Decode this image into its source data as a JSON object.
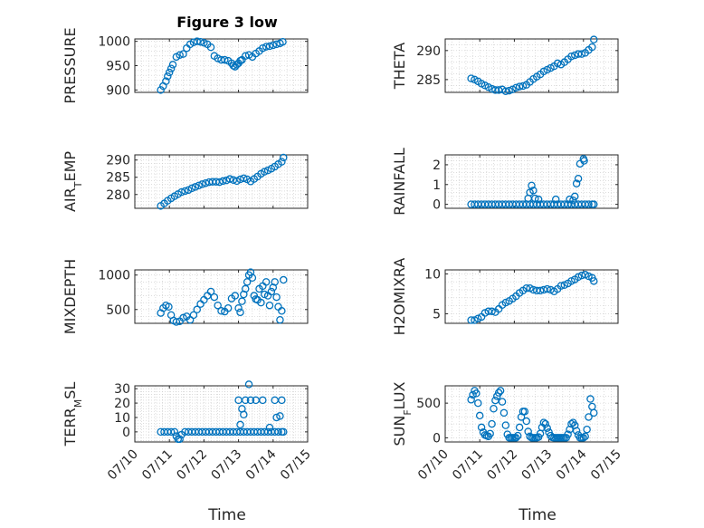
{
  "figure": {
    "title": "Figure 3 low",
    "x_tick_labels": [
      "07/10",
      "07/11",
      "07/12",
      "07/13",
      "07/14",
      "07/15"
    ],
    "x_label": "Time",
    "marker_color": "#0072bd"
  },
  "chart_data": [
    {
      "type": "scatter",
      "ylabel": "PRESSURE",
      "ylabel_sub": "",
      "ylabel_suffix": "",
      "ylim": [
        895,
        1005
      ],
      "yticks": [
        900,
        950,
        1000
      ],
      "xlim": [
        0,
        5
      ],
      "x": [
        0.75,
        0.82,
        0.9,
        0.95,
        1.0,
        1.05,
        1.1,
        1.2,
        1.3,
        1.4,
        1.5,
        1.6,
        1.7,
        1.8,
        1.9,
        2.0,
        2.1,
        2.2,
        2.3,
        2.4,
        2.5,
        2.6,
        2.7,
        2.8,
        2.85,
        2.9,
        2.95,
        3.0,
        3.05,
        3.1,
        3.2,
        3.3,
        3.4,
        3.5,
        3.6,
        3.7,
        3.8,
        3.9,
        4.0,
        4.1,
        4.2,
        4.28
      ],
      "y": [
        900,
        908,
        918,
        928,
        936,
        944,
        952,
        968,
        972,
        974,
        986,
        994,
        998,
        1000,
        999,
        997,
        994,
        988,
        970,
        965,
        962,
        962,
        960,
        955,
        950,
        948,
        952,
        955,
        960,
        962,
        970,
        972,
        968,
        975,
        980,
        986,
        989,
        990,
        992,
        994,
        996,
        999
      ]
    },
    {
      "type": "scatter",
      "ylabel": "THETA",
      "ylabel_sub": "",
      "ylabel_suffix": "",
      "ylim": [
        282.8,
        292
      ],
      "yticks": [
        285,
        290
      ],
      "xlim": [
        0,
        5
      ],
      "x": [
        0.75,
        0.85,
        0.95,
        1.05,
        1.15,
        1.25,
        1.35,
        1.45,
        1.55,
        1.65,
        1.75,
        1.85,
        1.95,
        2.05,
        2.15,
        2.25,
        2.35,
        2.45,
        2.55,
        2.65,
        2.75,
        2.85,
        2.95,
        3.05,
        3.15,
        3.25,
        3.35,
        3.45,
        3.55,
        3.65,
        3.75,
        3.85,
        3.95,
        4.05,
        4.15,
        4.25,
        4.3
      ],
      "y": [
        285.2,
        285,
        284.7,
        284.3,
        284,
        283.7,
        283.4,
        283.2,
        283.2,
        283.3,
        283,
        283.1,
        283.3,
        283.6,
        283.8,
        283.9,
        284.1,
        284.6,
        285.1,
        285.5,
        285.9,
        286.4,
        286.7,
        287,
        287.3,
        287.8,
        287.6,
        288,
        288.5,
        289,
        289.2,
        289.4,
        289.4,
        289.6,
        290.1,
        290.6,
        291.9
      ]
    },
    {
      "type": "scatter",
      "ylabel": "AIR",
      "ylabel_sub": "T",
      "ylabel_suffix": "EMP",
      "ylim": [
        276,
        291.5
      ],
      "yticks": [
        280,
        285,
        290
      ],
      "xlim": [
        0,
        5
      ],
      "x": [
        0.75,
        0.85,
        0.95,
        1.05,
        1.15,
        1.25,
        1.35,
        1.45,
        1.55,
        1.65,
        1.75,
        1.85,
        1.95,
        2.05,
        2.15,
        2.25,
        2.35,
        2.45,
        2.55,
        2.65,
        2.75,
        2.85,
        2.95,
        3.05,
        3.15,
        3.25,
        3.35,
        3.45,
        3.55,
        3.65,
        3.75,
        3.85,
        3.95,
        4.05,
        4.15,
        4.25,
        4.3
      ],
      "y": [
        276.7,
        277.4,
        278.2,
        278.9,
        279.5,
        280.1,
        280.7,
        281,
        281.3,
        281.8,
        282.2,
        282.6,
        283,
        283.3,
        283.6,
        283.7,
        283.7,
        283.6,
        283.9,
        284.1,
        284.5,
        284.2,
        283.9,
        284.4,
        284.7,
        284.4,
        283.8,
        284.5,
        285.2,
        286,
        286.6,
        287,
        287.5,
        288.1,
        288.8,
        289.5,
        290.7
      ]
    },
    {
      "type": "scatter",
      "ylabel": "RAINFALL",
      "ylabel_sub": "",
      "ylabel_suffix": "",
      "ylim": [
        -0.2,
        2.5
      ],
      "yticks": [
        0,
        1,
        2
      ],
      "xlim": [
        0,
        5
      ],
      "x": [
        0.75,
        0.85,
        0.95,
        1.05,
        1.15,
        1.25,
        1.35,
        1.45,
        1.55,
        1.65,
        1.75,
        1.85,
        1.95,
        2.05,
        2.15,
        2.25,
        2.35,
        2.45,
        2.55,
        2.65,
        2.75,
        2.85,
        2.95,
        3.05,
        3.15,
        3.25,
        3.35,
        3.45,
        3.55,
        3.65,
        3.75,
        3.85,
        3.95,
        4.05,
        4.15,
        4.25,
        4.3,
        2.4,
        2.45,
        2.5,
        2.55,
        2.6,
        2.7,
        3.2,
        3.6,
        3.7,
        3.75,
        3.8,
        3.85,
        3.9,
        4.0,
        4.02
      ],
      "y": [
        0,
        0,
        0,
        0,
        0,
        0,
        0,
        0,
        0,
        0,
        0,
        0,
        0,
        0,
        0,
        0,
        0,
        0,
        0,
        0,
        0,
        0,
        0,
        0,
        0,
        0,
        0,
        0,
        0,
        0,
        0,
        0,
        0,
        0,
        0,
        0,
        0,
        0.3,
        0.6,
        0.95,
        0.7,
        0.3,
        0.25,
        0.25,
        0.25,
        0.2,
        0.4,
        1.05,
        1.3,
        2.05,
        2.3,
        2.2
      ]
    },
    {
      "type": "scatter",
      "ylabel": "MIXDEPTH",
      "ylabel_sub": "",
      "ylabel_suffix": "",
      "ylim": [
        300,
        1075
      ],
      "yticks": [
        500,
        1000
      ],
      "xlim": [
        0,
        5
      ],
      "x": [
        0.75,
        0.82,
        0.9,
        0.98,
        1.05,
        1.12,
        1.2,
        1.3,
        1.4,
        1.5,
        1.6,
        1.7,
        1.8,
        1.9,
        2.0,
        2.1,
        2.2,
        2.3,
        2.4,
        2.5,
        2.6,
        2.7,
        2.8,
        2.9,
        3.0,
        3.05,
        3.1,
        3.15,
        3.2,
        3.25,
        3.3,
        3.35,
        3.4,
        3.45,
        3.5,
        3.55,
        3.6,
        3.65,
        3.7,
        3.75,
        3.8,
        3.85,
        3.9,
        3.95,
        4.0,
        4.05,
        4.1,
        4.15,
        4.2,
        4.25,
        4.3
      ],
      "y": [
        450,
        520,
        560,
        540,
        420,
        340,
        320,
        330,
        380,
        400,
        350,
        420,
        500,
        580,
        640,
        700,
        760,
        680,
        560,
        480,
        470,
        520,
        660,
        700,
        520,
        460,
        620,
        720,
        800,
        900,
        1000,
        1040,
        960,
        700,
        650,
        640,
        800,
        600,
        840,
        720,
        900,
        700,
        560,
        760,
        820,
        900,
        680,
        540,
        350,
        480,
        930
      ]
    },
    {
      "type": "scatter",
      "ylabel": "H2OMIXRA",
      "ylabel_sub": "",
      "ylabel_suffix": "",
      "ylim": [
        3.8,
        10.5
      ],
      "yticks": [
        5,
        10
      ],
      "xlim": [
        0,
        5
      ],
      "x": [
        0.75,
        0.85,
        0.95,
        1.05,
        1.15,
        1.25,
        1.35,
        1.45,
        1.55,
        1.65,
        1.75,
        1.85,
        1.95,
        2.05,
        2.15,
        2.25,
        2.35,
        2.45,
        2.55,
        2.65,
        2.75,
        2.85,
        2.95,
        3.05,
        3.15,
        3.25,
        3.35,
        3.45,
        3.55,
        3.65,
        3.75,
        3.85,
        3.95,
        4.05,
        4.15,
        4.25,
        4.3
      ],
      "y": [
        4.2,
        4.2,
        4.4,
        4.6,
        5.1,
        5.3,
        5.3,
        5.2,
        5.6,
        6.1,
        6.4,
        6.6,
        6.9,
        7.2,
        7.6,
        7.9,
        8.2,
        8.2,
        8,
        7.9,
        7.9,
        8,
        8.1,
        8,
        7.8,
        8.1,
        8.5,
        8.6,
        8.8,
        9.1,
        9.3,
        9.6,
        9.8,
        9.9,
        9.7,
        9.5,
        9.1
      ]
    },
    {
      "type": "scatter",
      "ylabel": "TERR",
      "ylabel_sub": "M",
      "ylabel_suffix": "SL",
      "ylim": [
        -7,
        32
      ],
      "yticks": [
        0,
        10,
        20,
        30
      ],
      "xlim": [
        0,
        5
      ],
      "x": [
        0.75,
        0.85,
        0.95,
        1.05,
        1.15,
        1.2,
        1.25,
        1.3,
        1.35,
        1.45,
        1.55,
        1.65,
        1.75,
        1.85,
        1.95,
        2.05,
        2.15,
        2.25,
        2.35,
        2.45,
        2.55,
        2.65,
        2.75,
        2.85,
        2.95,
        3.05,
        3.15,
        3.25,
        3.35,
        3.45,
        3.55,
        3.65,
        3.75,
        3.85,
        3.95,
        4.05,
        4.15,
        4.25,
        4.3,
        3.0,
        3.05,
        3.1,
        3.15,
        3.2,
        3.3,
        3.35,
        3.5,
        3.7,
        3.9,
        4.05,
        4.1,
        4.2,
        4.25
      ],
      "y": [
        0,
        0,
        0,
        0,
        0,
        -3,
        -5,
        -5,
        -2,
        0,
        0,
        0,
        0,
        0,
        0,
        0,
        0,
        0,
        0,
        0,
        0,
        0,
        0,
        0,
        0,
        0,
        0,
        0,
        0,
        0,
        0,
        0,
        0,
        0,
        0,
        0,
        0,
        0,
        0,
        22,
        5,
        16,
        12,
        22,
        33,
        22,
        22,
        22,
        3,
        22,
        10,
        11,
        22
      ]
    },
    {
      "type": "scatter",
      "ylabel": "SUN",
      "ylabel_sub": "F",
      "ylabel_suffix": "LUX",
      "ylim": [
        -60,
        750
      ],
      "yticks": [
        0,
        500
      ],
      "xlim": [
        0,
        5
      ],
      "x": [
        0.75,
        0.8,
        0.85,
        0.9,
        0.95,
        1.0,
        1.05,
        1.1,
        1.15,
        1.2,
        1.25,
        1.3,
        1.35,
        1.4,
        1.45,
        1.5,
        1.55,
        1.6,
        1.65,
        1.7,
        1.75,
        1.8,
        1.85,
        1.9,
        1.95,
        2.0,
        2.05,
        2.1,
        2.15,
        2.2,
        2.25,
        2.3,
        2.35,
        2.4,
        2.45,
        2.5,
        2.55,
        2.6,
        2.65,
        2.7,
        2.75,
        2.8,
        2.85,
        2.9,
        2.95,
        3.0,
        3.05,
        3.1,
        3.15,
        3.2,
        3.25,
        3.3,
        3.35,
        3.4,
        3.45,
        3.5,
        3.55,
        3.6,
        3.65,
        3.7,
        3.75,
        3.8,
        3.85,
        3.9,
        3.95,
        4.0,
        4.05,
        4.1,
        4.15,
        4.2,
        4.25,
        4.3
      ],
      "y": [
        550,
        620,
        680,
        640,
        500,
        320,
        150,
        80,
        40,
        30,
        20,
        60,
        200,
        420,
        540,
        600,
        650,
        680,
        520,
        360,
        180,
        50,
        0,
        0,
        0,
        0,
        0,
        30,
        150,
        300,
        380,
        380,
        240,
        90,
        20,
        0,
        0,
        0,
        0,
        10,
        60,
        150,
        220,
        200,
        140,
        80,
        30,
        5,
        0,
        0,
        0,
        0,
        0,
        0,
        0,
        0,
        50,
        120,
        200,
        220,
        180,
        100,
        40,
        0,
        0,
        0,
        20,
        120,
        300,
        560,
        450,
        360
      ]
    }
  ]
}
